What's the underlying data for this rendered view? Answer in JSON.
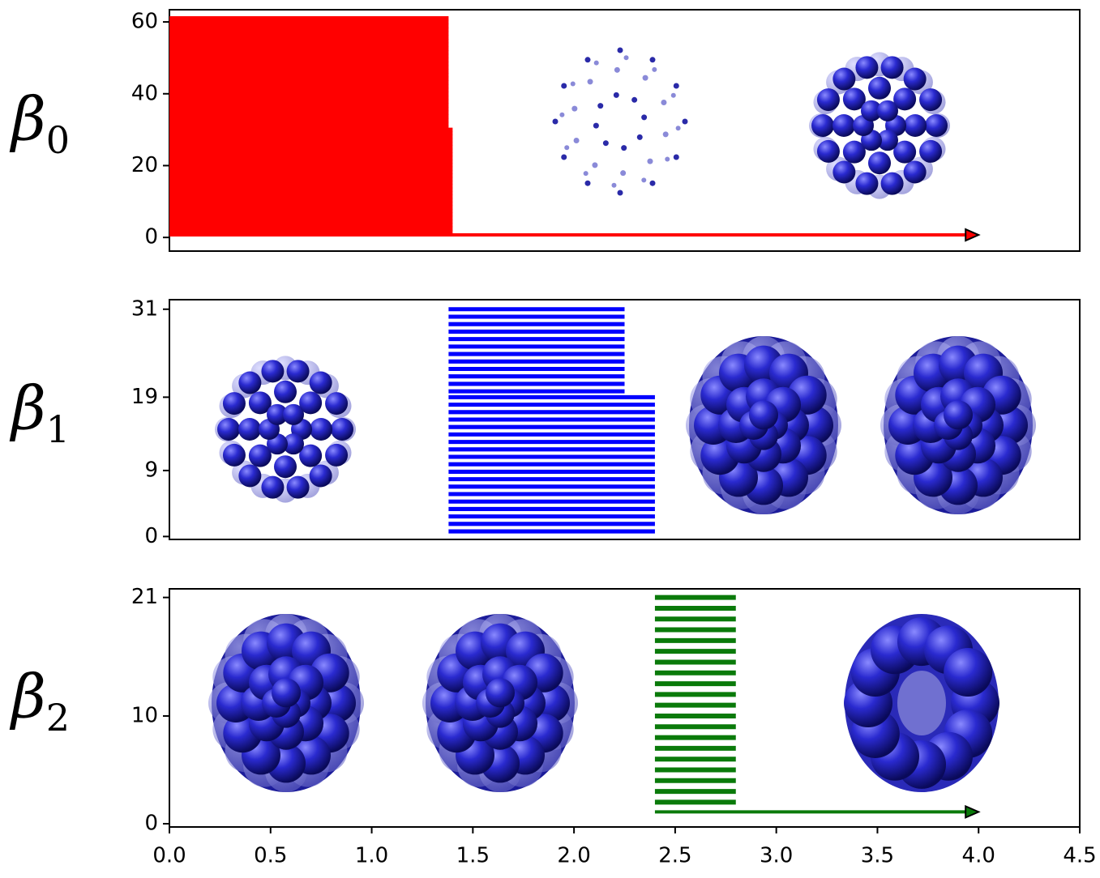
{
  "chart_data": [
    {
      "type": "barcode",
      "label": "β",
      "subscript": "0",
      "color": "#ff0000",
      "xlim": [
        0,
        4.5
      ],
      "ylim": [
        -3.8,
        63.4
      ],
      "yticks": [
        0,
        20,
        40,
        60
      ],
      "intervals": [
        {
          "birth": 0,
          "death": 4.0,
          "y": [
            0.7,
            0.7
          ],
          "count": 1,
          "arrow": true
        },
        {
          "birth": 0,
          "death": 1.4,
          "y": [
            1.5,
            30
          ],
          "count": 30,
          "arrow": false
        },
        {
          "birth": 0,
          "death": 1.38,
          "y": [
            30.5,
            61
          ],
          "count": 30,
          "arrow": false
        }
      ]
    },
    {
      "type": "barcode",
      "label": "β",
      "subscript": "1",
      "color": "#0000ff",
      "xlim": [
        0,
        4.5
      ],
      "ylim": [
        -0.4,
        32.3
      ],
      "yticks": [
        0,
        9,
        19,
        31
      ],
      "intervals": [
        {
          "birth": 1.38,
          "death": 2.4,
          "y": [
            0.7,
            19
          ],
          "count": 19,
          "arrow": false
        },
        {
          "birth": 1.38,
          "death": 2.25,
          "y": [
            19.8,
            31
          ],
          "count": 12,
          "arrow": false
        }
      ]
    },
    {
      "type": "barcode",
      "label": "β",
      "subscript": "2",
      "color": "#0a7a0a",
      "xlim": [
        0,
        4.5
      ],
      "ylim": [
        -0.3,
        21.8
      ],
      "xticks": [
        {
          "value": 0,
          "label": "0.0"
        },
        0.5,
        {
          "value": 1,
          "label": "1.0"
        },
        1.5,
        {
          "value": 2,
          "label": "2.0"
        },
        2.5,
        {
          "value": 3,
          "label": "3.0"
        },
        3.5,
        {
          "value": 4,
          "label": "4.0"
        },
        4.5
      ],
      "yticks": [
        0,
        10,
        21
      ],
      "intervals": [
        {
          "birth": 2.4,
          "death": 4.0,
          "y": [
            1.1,
            1.1
          ],
          "count": 1,
          "arrow": true
        },
        {
          "birth": 2.4,
          "death": 2.8,
          "y": [
            2,
            21
          ],
          "count": 20,
          "arrow": false
        }
      ]
    }
  ]
}
